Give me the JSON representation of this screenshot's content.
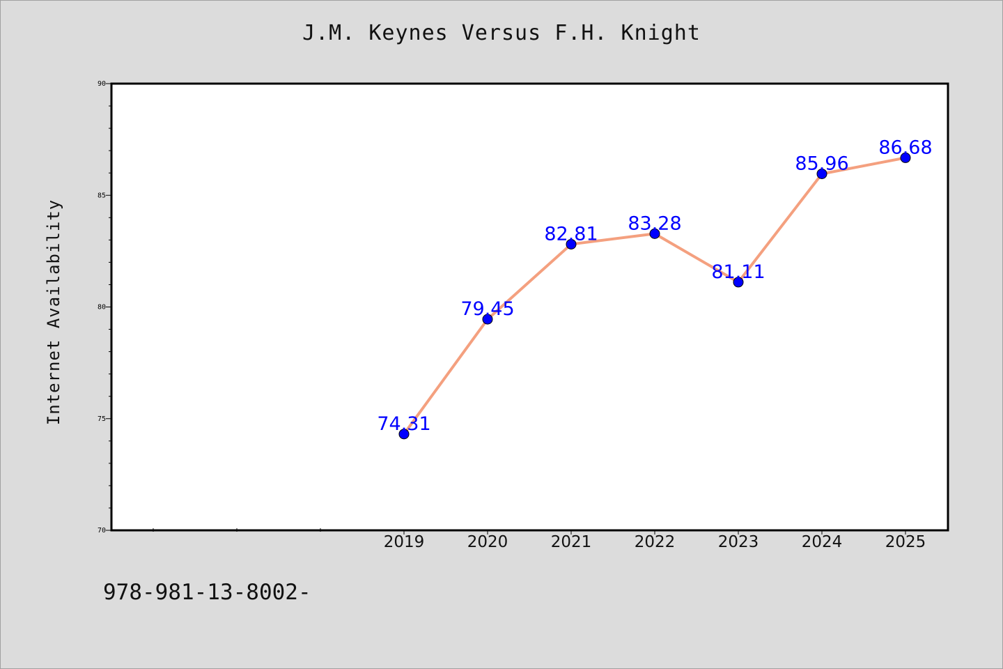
{
  "chart_data": {
    "type": "line",
    "title": "J.M. Keynes Versus F.H. Knight",
    "ylabel": "Internet Availability",
    "xlabel": "",
    "categories": [
      "2019",
      "2020",
      "2021",
      "2022",
      "2023",
      "2024",
      "2025"
    ],
    "series": [
      {
        "values": [
          74.31,
          79.45,
          82.81,
          83.28,
          81.11,
          85.96,
          86.68
        ]
      }
    ],
    "data_labels": [
      "74.31",
      "79.45",
      "82.81",
      "83.28",
      "81.11",
      "85.96",
      "86.68"
    ],
    "ylim": [
      70,
      90
    ],
    "y_ticks": [
      "70",
      "75",
      "80",
      "85",
      "90"
    ],
    "grid": false,
    "legend": "none",
    "colors": {
      "line": "#f4a07f",
      "marker": "#0000ff",
      "label": "#0000ff"
    }
  },
  "footer": {
    "code": "978-981-13-8002-"
  }
}
